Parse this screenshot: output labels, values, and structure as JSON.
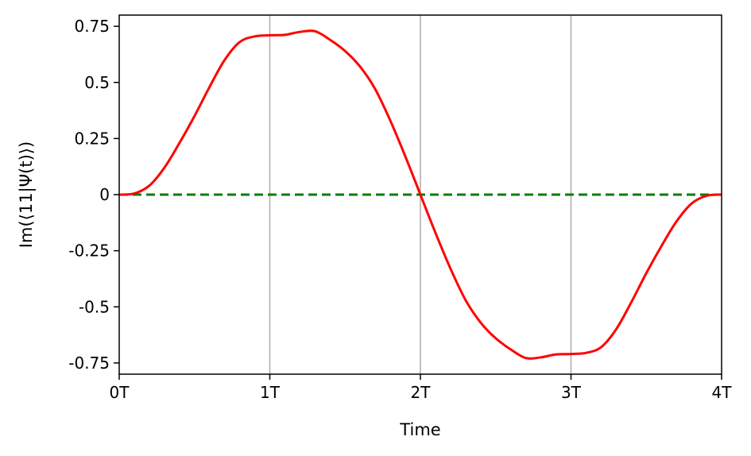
{
  "chart_data": {
    "type": "line",
    "title": "",
    "xlabel": "Time",
    "ylabel": "Im(⟨11|Ψ(t)⟩)",
    "xlim": [
      0,
      4
    ],
    "ylim": [
      -0.8,
      0.8
    ],
    "x_ticks": [
      {
        "value": 0,
        "label": "0T"
      },
      {
        "value": 1,
        "label": "1T"
      },
      {
        "value": 2,
        "label": "2T"
      },
      {
        "value": 3,
        "label": "3T"
      },
      {
        "value": 4,
        "label": "4T"
      }
    ],
    "y_ticks": [
      {
        "value": 0.75,
        "label": "0.75"
      },
      {
        "value": 0.5,
        "label": "0.5"
      },
      {
        "value": 0.25,
        "label": "0.25"
      },
      {
        "value": 0,
        "label": "0"
      },
      {
        "value": -0.25,
        "label": "-0.25"
      },
      {
        "value": -0.5,
        "label": "-0.5"
      },
      {
        "value": -0.75,
        "label": "-0.75"
      }
    ],
    "grid": "vertical",
    "series": [
      {
        "color": "#ff0000",
        "style": "solid",
        "x": [
          0,
          0.1,
          0.2,
          0.3,
          0.4,
          0.5,
          0.6,
          0.7,
          0.8,
          0.9,
          1.0,
          1.1,
          1.2,
          1.3,
          1.4,
          1.5,
          1.6,
          1.7,
          1.8,
          1.9,
          2.0,
          2.1,
          2.2,
          2.3,
          2.4,
          2.5,
          2.6,
          2.7,
          2.8,
          2.9,
          3.0,
          3.1,
          3.2,
          3.3,
          3.4,
          3.5,
          3.6,
          3.7,
          3.8,
          3.9,
          4.0
        ],
        "y": [
          0,
          0.005,
          0.04,
          0.12,
          0.23,
          0.35,
          0.48,
          0.6,
          0.68,
          0.705,
          0.71,
          0.712,
          0.725,
          0.728,
          0.69,
          0.64,
          0.57,
          0.47,
          0.33,
          0.17,
          0,
          -0.17,
          -0.33,
          -0.47,
          -0.57,
          -0.64,
          -0.69,
          -0.728,
          -0.725,
          -0.712,
          -0.71,
          -0.705,
          -0.68,
          -0.6,
          -0.48,
          -0.35,
          -0.23,
          -0.12,
          -0.04,
          -0.005,
          0
        ]
      },
      {
        "color": "#008000",
        "style": "dashed",
        "x": [
          0,
          4
        ],
        "y": [
          0,
          0
        ]
      }
    ]
  }
}
